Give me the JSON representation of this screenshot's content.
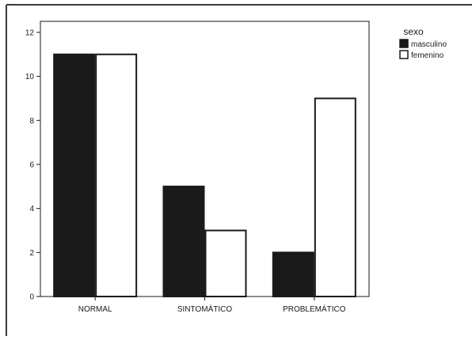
{
  "chart_data": {
    "type": "bar",
    "title": "",
    "xlabel": "",
    "ylabel": "",
    "categories": [
      "NORMAL",
      "SINTOMÁTICO",
      "PROBLEMÁTICO"
    ],
    "series": [
      {
        "name": "masculino",
        "values": [
          11,
          5,
          2
        ],
        "color": "#1a1a1a"
      },
      {
        "name": "femenino",
        "values": [
          11,
          3,
          9
        ],
        "color": "#ffffff"
      }
    ],
    "ylim": [
      0,
      12.5
    ],
    "yticks": [
      0,
      2,
      4,
      6,
      8,
      10,
      12
    ],
    "grid": false,
    "legend": {
      "title": "sexo",
      "placement": "top-right"
    },
    "stroke_color": "#1a1a1a"
  }
}
